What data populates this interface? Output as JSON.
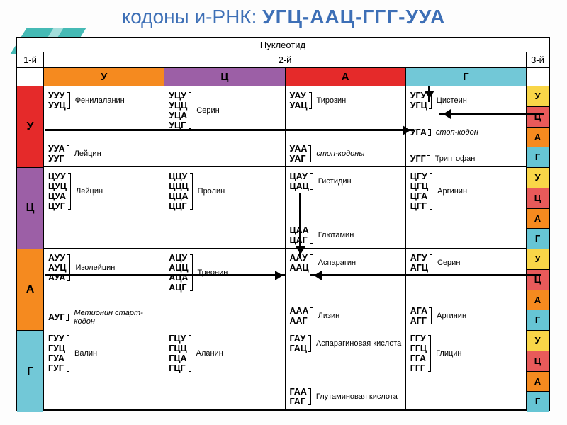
{
  "title_prefix": "кодоны и-РНК: ",
  "title_main": "УГЦ-ААЦ-ГГГ-УУА",
  "head_nucleotide": "Нуклеотид",
  "head_first": "1-й",
  "head_second": "2-й",
  "head_third": "3-й",
  "col_colors": [
    "#f58a1f",
    "#9c5fa6",
    "#e52a2a",
    "#72c8d7"
  ],
  "left_colors": [
    "#e52a2a",
    "#9c5fa6",
    "#f58a1f",
    "#72c8d7"
  ],
  "right_colors": [
    "#f9d648",
    "#e85a5a",
    "#f58a1f",
    "#66c5d4"
  ],
  "bases": [
    "У",
    "Ц",
    "А",
    "Г"
  ],
  "cells": {
    "r0c0": [
      {
        "codons": [
          "УУУ",
          "УУЦ"
        ],
        "aa": "Фенилаланин"
      },
      {
        "codons": [
          "УУА",
          "УУГ"
        ],
        "aa": "Лейцин"
      }
    ],
    "r0c1": [
      {
        "codons": [
          "УЦУ",
          "УЦЦ",
          "УЦА",
          "УЦГ"
        ],
        "aa": "Серин"
      }
    ],
    "r0c2": [
      {
        "codons": [
          "УАУ",
          "УАЦ"
        ],
        "aa": "Тирозин"
      },
      {
        "codons": [
          "УАА",
          "УАГ"
        ],
        "aa": "стоп-кодоны",
        "italic": true
      }
    ],
    "r0c3": [
      {
        "codons": [
          "УГУ",
          "УГЦ"
        ],
        "aa": "Цистеин"
      },
      {
        "codons": [
          "УГА"
        ],
        "aa": "стоп-кодон",
        "italic": true
      },
      {
        "codons": [
          "УГГ"
        ],
        "aa": "Триптофан"
      }
    ],
    "r1c0": [
      {
        "codons": [
          "ЦУУ",
          "ЦУЦ",
          "ЦУА",
          "ЦУГ"
        ],
        "aa": "Лейцин"
      }
    ],
    "r1c1": [
      {
        "codons": [
          "ЦЦУ",
          "ЦЦЦ",
          "ЦЦА",
          "ЦЦГ"
        ],
        "aa": "Пролин"
      }
    ],
    "r1c2": [
      {
        "codons": [
          "ЦАУ",
          "ЦАЦ"
        ],
        "aa": "Гистидин"
      },
      {
        "codons": [
          "ЦАА",
          "ЦАГ"
        ],
        "aa": "Глютамин"
      }
    ],
    "r1c3": [
      {
        "codons": [
          "ЦГУ",
          "ЦГЦ",
          "ЦГА",
          "ЦГГ"
        ],
        "aa": "Аргинин"
      }
    ],
    "r2c0": [
      {
        "codons": [
          "АУУ",
          "АУЦ",
          "АУА"
        ],
        "aa": "Изолейцин"
      },
      {
        "codons": [
          "АУГ"
        ],
        "aa": "Метионин старт-кодон",
        "italic": true
      }
    ],
    "r2c1": [
      {
        "codons": [
          "АЦУ",
          "АЦЦ",
          "АЦА",
          "АЦГ"
        ],
        "aa": "Треонин"
      }
    ],
    "r2c2": [
      {
        "codons": [
          "ААУ",
          "ААЦ"
        ],
        "aa": "Аспарагин"
      },
      {
        "codons": [
          "ААА",
          "ААГ"
        ],
        "aa": "Лизин"
      }
    ],
    "r2c3": [
      {
        "codons": [
          "АГУ",
          "АГЦ"
        ],
        "aa": "Серин"
      },
      {
        "codons": [
          "АГА",
          "АГГ"
        ],
        "aa": "Аргинин"
      }
    ],
    "r3c0": [
      {
        "codons": [
          "ГУУ",
          "ГУЦ",
          "ГУА",
          "ГУГ"
        ],
        "aa": "Валин"
      }
    ],
    "r3c1": [
      {
        "codons": [
          "ГЦУ",
          "ГЦЦ",
          "ГЦА",
          "ГЦГ"
        ],
        "aa": "Аланин"
      }
    ],
    "r3c2": [
      {
        "codons": [
          "ГАУ",
          "ГАЦ"
        ],
        "aa": "Аспарагиновая кислота"
      },
      {
        "codons": [
          "ГАА",
          "ГАГ"
        ],
        "aa": "Глутаминовая кислота"
      }
    ],
    "r3c3": [
      {
        "codons": [
          "ГГУ",
          "ГГЦ",
          "ГГА",
          "ГГГ"
        ],
        "aa": "Глицин"
      }
    ]
  }
}
